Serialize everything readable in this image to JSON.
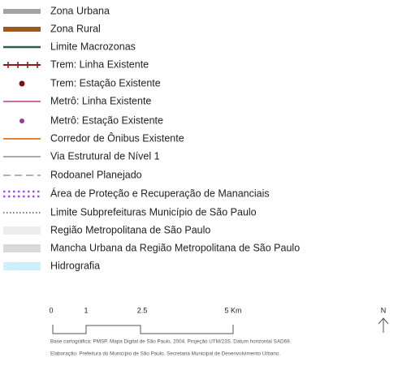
{
  "legend": {
    "items": [
      "Zona Urbana",
      "Zona Rural",
      "Limite Macrozonas",
      "Trem: Linha Existente",
      "Trem: Estação Existente",
      "Metrô: Linha Existente",
      "Metrô: Estação Existente",
      "Corredor de Ônibus Existente",
      "Via Estrutural de Nível 1",
      "Rodoanel Planejado",
      "Área de Proteção e Recuperação de Mananciais",
      "Limite Subprefeituras Município de São Paulo",
      "Região Metropolitana de São Paulo",
      "Mancha Urbana da Região Metropolitana de São Paulo",
      "Hidrografia"
    ]
  },
  "scale": {
    "labels": [
      "0",
      "1",
      "2.5",
      "5 Km"
    ]
  },
  "north": "N",
  "source": [
    "Base cartográfica: PMSP. Mapa Digital de São Paulo, 2004. Projeção UTM/23S. Datum horizontal SAD69.",
    "Elaboração: Prefeitura do Município de São Paulo. Secretaria Municipal de Desenvolvimento Urbano."
  ]
}
